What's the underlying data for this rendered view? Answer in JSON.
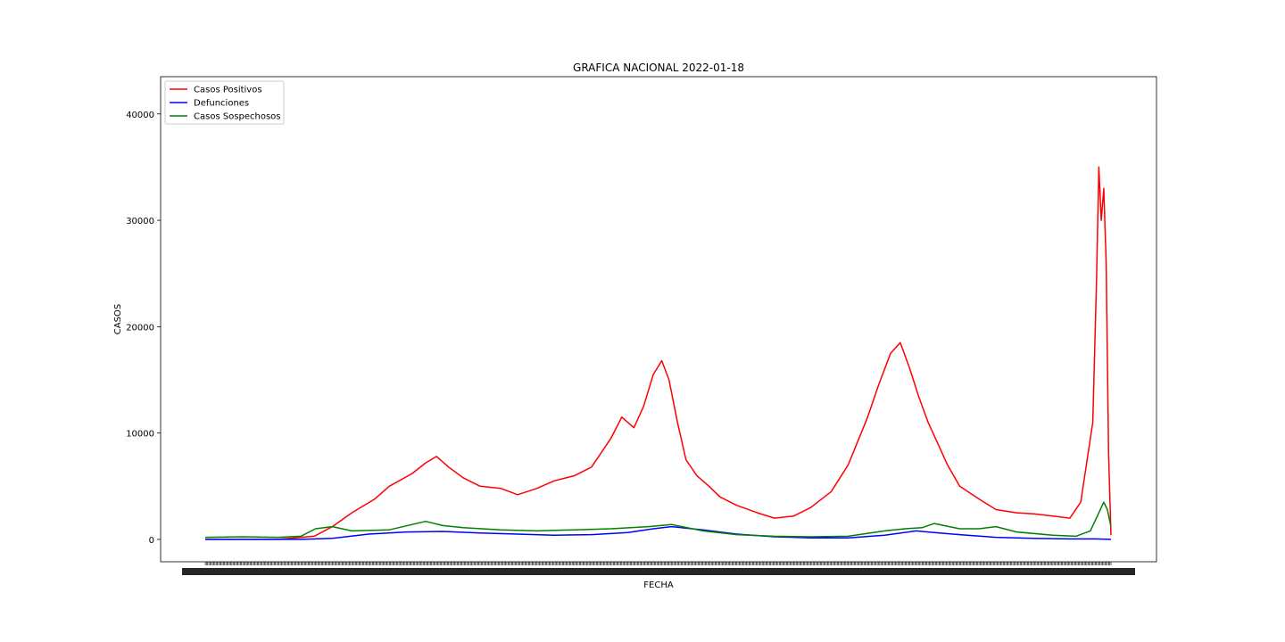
{
  "chart_data": {
    "type": "line",
    "title": "GRAFICA NACIONAL 2022-01-18",
    "xlabel": "FECHA",
    "ylabel": "CASOS",
    "x_range": [
      "2020-01-01",
      "2022-01-18"
    ],
    "ylim": [
      -2100,
      43500
    ],
    "yticks": [
      0,
      10000,
      20000,
      30000,
      40000
    ],
    "ytick_labels": [
      "0",
      "10000",
      "20000",
      "30000",
      "40000"
    ],
    "grid": false,
    "legend_position": "top-left",
    "series": [
      {
        "name": "Casos Positivos",
        "color": "#ff0000",
        "x": [
          "2020-01-01",
          "2020-03-01",
          "2020-03-31",
          "2020-04-15",
          "2020-05-01",
          "2020-05-20",
          "2020-06-01",
          "2020-06-20",
          "2020-07-01",
          "2020-07-10",
          "2020-07-20",
          "2020-08-01",
          "2020-08-15",
          "2020-09-01",
          "2020-09-15",
          "2020-10-01",
          "2020-10-15",
          "2020-11-01",
          "2020-11-15",
          "2020-12-01",
          "2020-12-10",
          "2020-12-20",
          "2020-12-28",
          "2021-01-05",
          "2021-01-12",
          "2021-01-18",
          "2021-01-25",
          "2021-02-01",
          "2021-02-10",
          "2021-02-20",
          "2021-03-01",
          "2021-03-15",
          "2021-04-01",
          "2021-04-15",
          "2021-05-01",
          "2021-05-15",
          "2021-06-01",
          "2021-06-15",
          "2021-07-01",
          "2021-07-10",
          "2021-07-20",
          "2021-07-28",
          "2021-08-05",
          "2021-08-12",
          "2021-08-20",
          "2021-08-28",
          "2021-09-05",
          "2021-09-15",
          "2021-10-01",
          "2021-10-15",
          "2021-11-01",
          "2021-11-15",
          "2021-12-01",
          "2021-12-15",
          "2021-12-24",
          "2021-12-30",
          "2022-01-03",
          "2022-01-06",
          "2022-01-08",
          "2022-01-10",
          "2022-01-12",
          "2022-01-14",
          "2022-01-16",
          "2022-01-18"
        ],
        "y": [
          0,
          0,
          300,
          1200,
          2500,
          3800,
          5000,
          6200,
          7200,
          7800,
          6800,
          5800,
          5000,
          4800,
          4200,
          4800,
          5500,
          6000,
          6800,
          9500,
          11500,
          10500,
          12500,
          15500,
          16800,
          15000,
          11000,
          7500,
          6000,
          5000,
          4000,
          3200,
          2500,
          2000,
          2200,
          3000,
          4500,
          7000,
          11500,
          14500,
          17500,
          18500,
          16000,
          13500,
          11000,
          9000,
          7000,
          5000,
          3800,
          2800,
          2500,
          2400,
          2200,
          2000,
          3500,
          8000,
          11000,
          24000,
          35000,
          30000,
          33000,
          26000,
          8000,
          400
        ]
      },
      {
        "name": "Defunciones",
        "color": "#0000ff",
        "x": [
          "2020-01-01",
          "2020-03-20",
          "2020-04-15",
          "2020-05-15",
          "2020-06-15",
          "2020-07-15",
          "2020-08-15",
          "2020-09-15",
          "2020-10-15",
          "2020-11-15",
          "2020-12-15",
          "2021-01-05",
          "2021-01-20",
          "2021-02-15",
          "2021-03-15",
          "2021-04-15",
          "2021-05-15",
          "2021-06-15",
          "2021-07-15",
          "2021-08-10",
          "2021-08-25",
          "2021-09-15",
          "2021-10-15",
          "2021-11-15",
          "2021-12-15",
          "2022-01-05",
          "2022-01-18"
        ],
        "y": [
          0,
          0,
          100,
          500,
          700,
          750,
          600,
          500,
          400,
          450,
          650,
          1000,
          1200,
          900,
          500,
          250,
          150,
          150,
          400,
          800,
          650,
          450,
          200,
          100,
          50,
          50,
          0
        ]
      },
      {
        "name": "Casos Sospechosos",
        "color": "#008000",
        "x": [
          "2020-01-01",
          "2020-02-01",
          "2020-03-01",
          "2020-03-20",
          "2020-04-01",
          "2020-04-15",
          "2020-05-01",
          "2020-06-01",
          "2020-07-01",
          "2020-07-15",
          "2020-08-01",
          "2020-09-01",
          "2020-10-01",
          "2020-11-01",
          "2020-12-01",
          "2021-01-01",
          "2021-01-20",
          "2021-02-15",
          "2021-03-15",
          "2021-04-15",
          "2021-05-15",
          "2021-06-15",
          "2021-07-15",
          "2021-08-01",
          "2021-08-15",
          "2021-08-25",
          "2021-09-15",
          "2021-10-01",
          "2021-10-15",
          "2021-11-01",
          "2021-12-01",
          "2021-12-20",
          "2022-01-01",
          "2022-01-08",
          "2022-01-12",
          "2022-01-15",
          "2022-01-18"
        ],
        "y": [
          200,
          250,
          200,
          300,
          1000,
          1200,
          800,
          900,
          1700,
          1300,
          1100,
          900,
          800,
          900,
          1000,
          1200,
          1400,
          800,
          450,
          300,
          250,
          300,
          800,
          1000,
          1100,
          1500,
          1000,
          1000,
          1200,
          700,
          400,
          300,
          800,
          2500,
          3500,
          2800,
          1200
        ]
      }
    ]
  }
}
